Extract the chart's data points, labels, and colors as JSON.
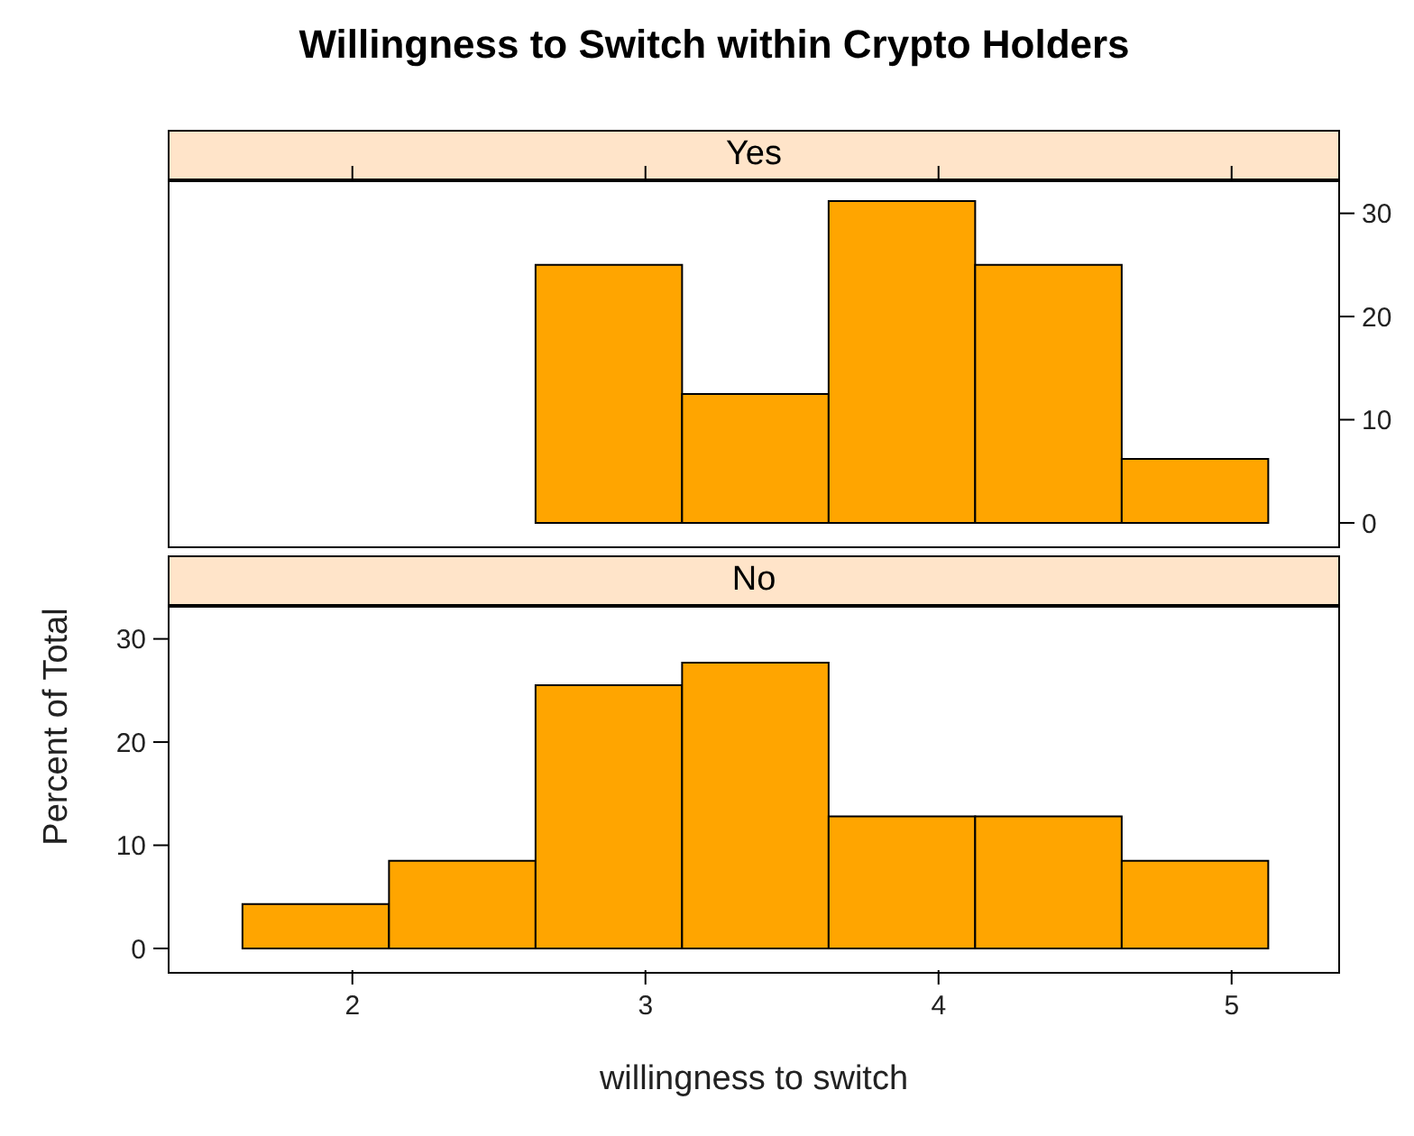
{
  "chart_data": [
    {
      "type": "histogram",
      "title": "Willingness to Switch within Crypto Holders",
      "subtitle": "Yes",
      "bins": [
        1.625,
        2.125,
        2.625,
        3.125,
        3.625,
        4.125,
        4.625,
        5.125
      ],
      "values": [
        0,
        0,
        25,
        12.5,
        31.2,
        25,
        6.2
      ],
      "color": "#ffa500",
      "xlim": [
        1.37,
        5.37
      ],
      "ylim": [
        -2.1,
        33.2
      ],
      "xticks": [
        {
          "value": 2,
          "label": null
        },
        {
          "value": 3,
          "label": null
        },
        {
          "value": 4,
          "label": null
        },
        {
          "value": 5,
          "label": null
        }
      ],
      "yticks": [
        0,
        10,
        20,
        30
      ],
      "tick_labels": "y"
    },
    {
      "type": "histogram",
      "subtitle": "No",
      "xlabel": "willingness to switch",
      "ylabel": "Percent of Total",
      "bins": [
        1.625,
        2.125,
        2.625,
        3.125,
        3.625,
        4.125,
        4.625,
        5.125
      ],
      "values": [
        4.3,
        8.5,
        25.5,
        27.7,
        12.8,
        12.8,
        8.5
      ],
      "color": "#ffa500",
      "xlim": [
        1.37,
        5.37
      ],
      "ylim": [
        -2.1,
        33.2
      ],
      "xticks": [
        2,
        3,
        4,
        5
      ],
      "yticks": [
        0,
        10,
        20,
        30
      ]
    }
  ]
}
